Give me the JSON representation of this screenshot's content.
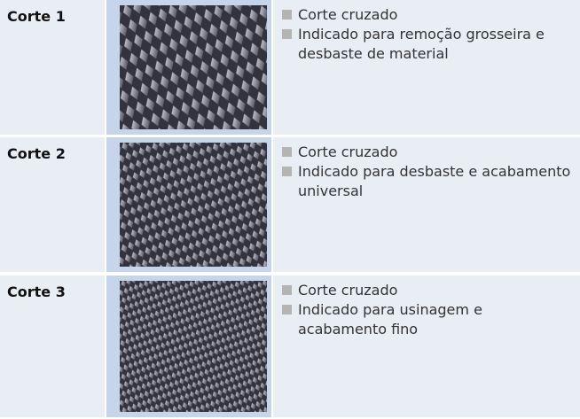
{
  "table": {
    "rows": [
      {
        "label": "Corte 1",
        "bullets": [
          "Corte cruzado",
          "Indicado para remoção grosseira e desbaste de material"
        ]
      },
      {
        "label": "Corte 2",
        "bullets": [
          "Corte cruzado",
          "Indicado para desbaste e acabamento universal"
        ]
      },
      {
        "label": "Corte 3",
        "bullets": [
          "Corte cruzado",
          "Indicado para usinagem e acabamento fino"
        ]
      }
    ]
  }
}
